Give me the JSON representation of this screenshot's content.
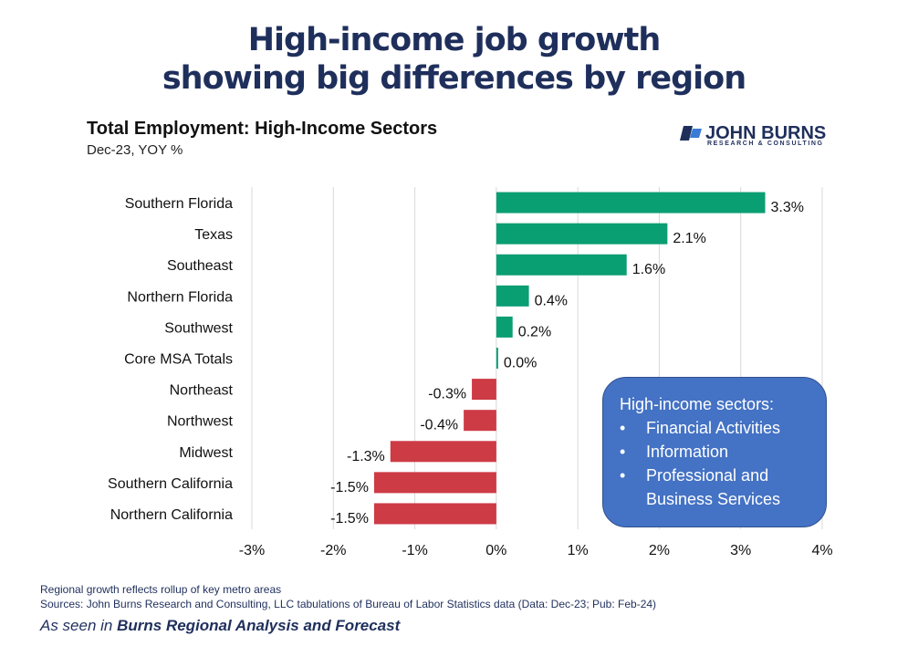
{
  "headline": {
    "line1": "High-income job growth",
    "line2": "showing big differences by region"
  },
  "logo": {
    "name": "JOHN BURNS",
    "tagline": "RESEARCH & CONSULTING",
    "mark_icon": "john-burns-logo-mark-icon"
  },
  "chart_data": {
    "type": "bar",
    "orientation": "horizontal",
    "title": "Total Employment: High-Income Sectors",
    "subtitle": "Dec-23, YOY %",
    "categories": [
      "Southern Florida",
      "Texas",
      "Southeast",
      "Northern Florida",
      "Southwest",
      "Core MSA Totals",
      "Northeast",
      "Northwest",
      "Midwest",
      "Southern California",
      "Northern California"
    ],
    "values": [
      3.3,
      2.1,
      1.6,
      0.4,
      0.2,
      0.0,
      -0.3,
      -0.4,
      -1.3,
      -1.5,
      -1.5
    ],
    "value_labels": [
      "3.3%",
      "2.1%",
      "1.6%",
      "0.4%",
      "0.2%",
      "0.0%",
      "-0.3%",
      "-0.4%",
      "-1.3%",
      "-1.5%",
      "-1.5%"
    ],
    "xlim": [
      -3,
      4
    ],
    "x_ticks": [
      -3,
      -2,
      -1,
      0,
      1,
      2,
      3,
      4
    ],
    "x_tick_labels": [
      "-3%",
      "-2%",
      "-1%",
      "0%",
      "1%",
      "2%",
      "3%",
      "4%"
    ],
    "grid": true,
    "colors": {
      "positive": "#0a9e73",
      "negative": "#cd3b45",
      "grid": "#d9d9d9"
    }
  },
  "callout": {
    "title": "High-income  sectors:",
    "bullet_char": "•",
    "items": [
      "Financial Activities",
      "Information",
      "Professional and Business Services"
    ],
    "colors": {
      "background": "#4472c4",
      "text": "#ffffff"
    }
  },
  "footer": {
    "note1": "Regional growth reflects rollup of key metro areas",
    "note2": "Sources: John Burns Research and Consulting, LLC tabulations of Bureau of Labor Statistics data (Data: Dec-23; Pub: Feb-24)",
    "as_seen_prefix": "As seen in ",
    "as_seen_publication": "Burns Regional Analysis and Forecast"
  }
}
